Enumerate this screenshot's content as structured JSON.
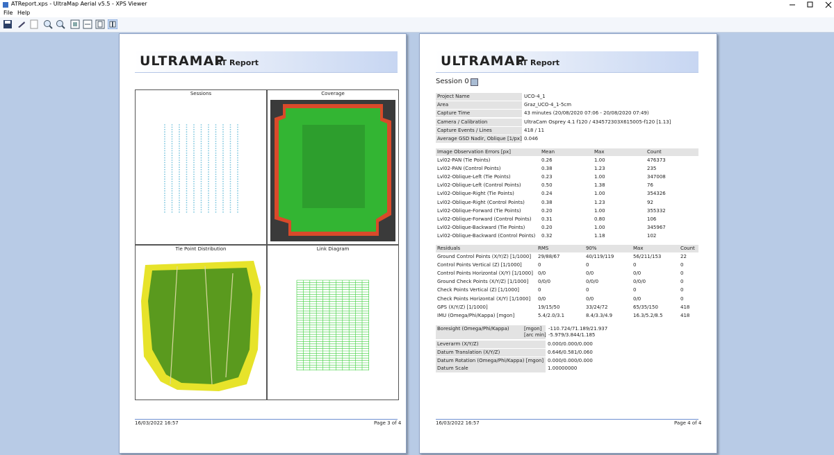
{
  "window": {
    "title": "ATReport.xps - UltraMap Aerial v5.5 - XPS Viewer",
    "menu": [
      "File",
      "Help"
    ]
  },
  "pages": [
    {
      "logo": "ULTRAMAP",
      "subtitle": "AT Report",
      "panels": [
        "Sessions",
        "Coverage",
        "Tie Point Distribution",
        "Link Diagram"
      ],
      "footer_date": "16/03/2022 16:57",
      "footer_page": "Page 3 of 4"
    },
    {
      "logo": "ULTRAMAP",
      "subtitle": "AT Report",
      "session": "Session 0",
      "project": [
        [
          "Project Name",
          "UCO-4_1"
        ],
        [
          "Area",
          "Graz_UCO-4_1-5cm"
        ],
        [
          "Capture Time",
          "43 minutes (20/08/2020 07:06 - 20/08/2020 07:49)"
        ],
        [
          "Camera / Calibration",
          "UltraCam Osprey 4.1 f120 / 434572303X615005-f120 [1.13]"
        ],
        [
          "Capture Events / Lines",
          "418 / 11"
        ],
        [
          "Average GSD Nadir, Oblique [1/px]",
          "0.046"
        ]
      ],
      "errors": {
        "header": [
          "Image Observation Errors [px]",
          "Mean",
          "Max",
          "Count"
        ],
        "rows": [
          [
            "Lvl02-PAN (Tie Points)",
            "0.26",
            "1.00",
            "476373"
          ],
          [
            "Lvl02-PAN (Control Points)",
            "0.38",
            "1.23",
            "235"
          ],
          [
            "Lvl02-Oblique-Left (Tie Points)",
            "0.23",
            "1.00",
            "347008"
          ],
          [
            "Lvl02-Oblique-Left (Control Points)",
            "0.50",
            "1.38",
            "76"
          ],
          [
            "Lvl02-Oblique-Right (Tie Points)",
            "0.24",
            "1.00",
            "354326"
          ],
          [
            "Lvl02-Oblique-Right (Control Points)",
            "0.38",
            "1.23",
            "92"
          ],
          [
            "Lvl02-Oblique-Forward (Tie Points)",
            "0.20",
            "1.00",
            "355332"
          ],
          [
            "Lvl02-Oblique-Forward (Control Points)",
            "0.31",
            "0.80",
            "106"
          ],
          [
            "Lvl02-Oblique-Backward (Tie Points)",
            "0.20",
            "1.00",
            "345967"
          ],
          [
            "Lvl02-Oblique-Backward (Control Points)",
            "0.32",
            "1.18",
            "102"
          ]
        ]
      },
      "residuals": {
        "header": [
          "Residuals",
          "RMS",
          "90%",
          "Max",
          "Count"
        ],
        "rows": [
          [
            "Ground Control Points (X/Y/Z) [1/1000]",
            "29/88/67",
            "40/119/119",
            "56/211/153",
            "22"
          ],
          [
            "Control Points Vertical (Z) [1/1000]",
            "0",
            "0",
            "0",
            "0"
          ],
          [
            "Control Points Horizontal (X/Y) [1/1000]",
            "0/0",
            "0/0",
            "0/0",
            "0"
          ],
          [
            "Ground Check Points (X/Y/Z) [1/1000]",
            "0/0/0",
            "0/0/0",
            "0/0/0",
            "0"
          ],
          [
            "Check Points Vertical (Z) [1/1000]",
            "0",
            "0",
            "0",
            "0"
          ],
          [
            "Check Points Horizontal (X/Y) [1/1000]",
            "0/0",
            "0/0",
            "0/0",
            "0"
          ],
          [
            "GPS (X/Y/Z) [1/1000]",
            "19/15/50",
            "33/24/72",
            "65/35/150",
            "418"
          ],
          [
            "IMU (Omega/Phi/Kappa) [mgon]",
            "5.4/2.0/3.1",
            "8.4/3.3/4.9",
            "16.3/5.2/8.5",
            "418"
          ]
        ]
      },
      "boresight": {
        "label": "Boresight (Omega/Phi/Kappa)",
        "units": [
          "[mgon]",
          "[arc min]"
        ],
        "values": [
          "-110.724/71.189/21.937",
          "-5.979/3.844/1.185"
        ]
      },
      "datum": [
        [
          "Leverarm (X/Y/Z)",
          "0.000/0.000/0.000"
        ],
        [
          "Datum Translation (X/Y/Z)",
          "0.646/0.581/0.060"
        ],
        [
          "Datum Rotation (Omega/Phi/Kappa) [mgon]",
          "0.000/0.000/0.000"
        ],
        [
          "Datum Scale",
          "1.00000000"
        ]
      ],
      "footer_date": "16/03/2022 16:57",
      "footer_page": "Page 4 of 4"
    }
  ]
}
